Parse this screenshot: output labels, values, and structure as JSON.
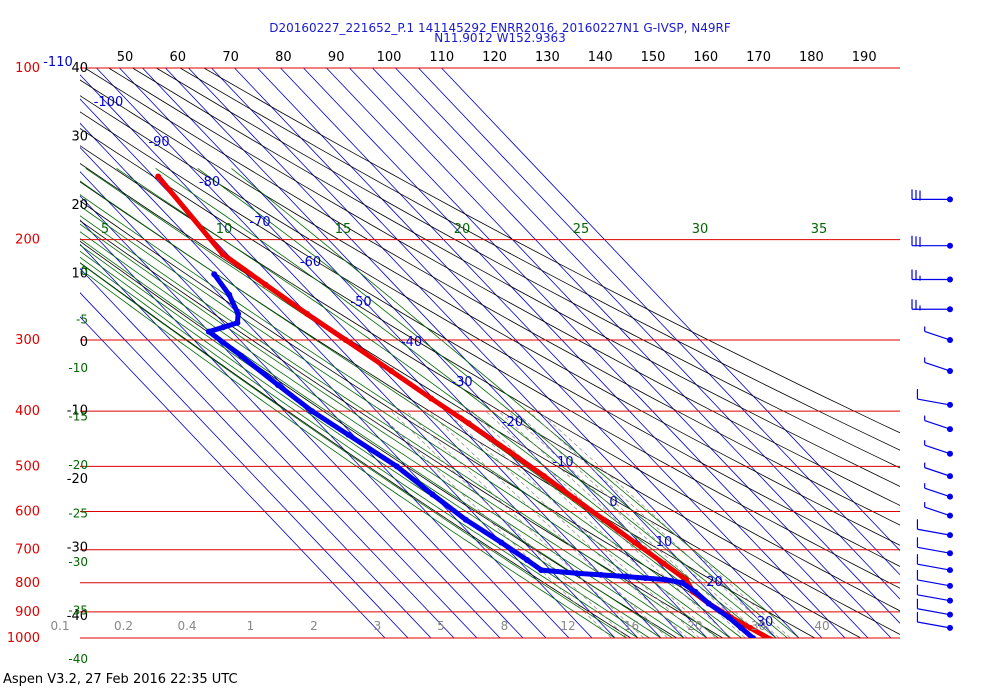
{
  "title_line1": "D20160227_221652_P.1 141145292 ENRR2016, 20160227N1 G-IVSP, N49RF",
  "title_line2": "N11.9012 W152.9363",
  "footer": "Aspen V3.2, 27 Feb 2016  22:35 UTC",
  "colors": {
    "isobar": "#dd0000",
    "isotherm": "#0000cc",
    "dry_adiabat": "#000000",
    "mixing_ratio": "#006600",
    "temperature": "#ee0000",
    "dewpoint": "#0000ee",
    "wind": "#0000ee"
  },
  "chart_data": {
    "type": "skew-t",
    "top_scale_labels": [
      "50",
      "60",
      "70",
      "80",
      "90",
      "100",
      "110",
      "120",
      "130",
      "140",
      "150",
      "160",
      "170",
      "180",
      "190"
    ],
    "pressure_labels": [
      {
        "p": 100,
        "label": "100"
      },
      {
        "p": 200,
        "label": "200"
      },
      {
        "p": 300,
        "label": "300"
      },
      {
        "p": 400,
        "label": "400"
      },
      {
        "p": 500,
        "label": "500"
      },
      {
        "p": 600,
        "label": "600"
      },
      {
        "p": 700,
        "label": "700"
      },
      {
        "p": 800,
        "label": "800"
      },
      {
        "p": 900,
        "label": "900"
      },
      {
        "p": 1000,
        "label": "1000"
      }
    ],
    "left_black_labels": [
      "40",
      "30",
      "20",
      "10",
      "0",
      "-10",
      "-20",
      "-30",
      "-40"
    ],
    "left_green_labels": [
      "0",
      "-5",
      "-10",
      "-15",
      "-20",
      "-25",
      "-30",
      "-35",
      "-40"
    ],
    "isotherm_labels": [
      "-110",
      "-100",
      "-90",
      "-80",
      "-70",
      "-60",
      "-50",
      "-40",
      "-30",
      "-20",
      "-10",
      "0",
      "10",
      "20",
      "30"
    ],
    "mixing_ratio_top_labels": [
      "5",
      "10",
      "15",
      "20",
      "25",
      "30",
      "35"
    ],
    "bottom_labels": [
      "0.1",
      "0.2",
      "0.4",
      "1",
      "2",
      "3",
      "5",
      "8",
      "12",
      "16",
      "20",
      "30",
      "40"
    ],
    "temperature_profile": [
      {
        "p": 155,
        "t": -48
      },
      {
        "p": 212,
        "t": -52
      },
      {
        "p": 240,
        "t": -46
      },
      {
        "p": 270,
        "t": -40
      },
      {
        "p": 300,
        "t": -34
      },
      {
        "p": 340,
        "t": -27
      },
      {
        "p": 380,
        "t": -21
      },
      {
        "p": 420,
        "t": -15
      },
      {
        "p": 470,
        "t": -9
      },
      {
        "p": 520,
        "t": -4
      },
      {
        "p": 570,
        "t": 0
      },
      {
        "p": 620,
        "t": 4
      },
      {
        "p": 680,
        "t": 8
      },
      {
        "p": 740,
        "t": 12
      },
      {
        "p": 790,
        "t": 15
      },
      {
        "p": 830,
        "t": 13
      },
      {
        "p": 870,
        "t": 15
      },
      {
        "p": 920,
        "t": 19
      },
      {
        "p": 960,
        "t": 23
      },
      {
        "p": 1005,
        "t": 27
      }
    ],
    "dewpoint_profile": [
      {
        "p": 230,
        "t": -64
      },
      {
        "p": 250,
        "t": -66
      },
      {
        "p": 270,
        "t": -70
      },
      {
        "p": 280,
        "t": -74
      },
      {
        "p": 285,
        "t": -82
      },
      {
        "p": 290,
        "t": -90
      },
      {
        "p": 320,
        "t": -86
      },
      {
        "p": 360,
        "t": -82
      },
      {
        "p": 400,
        "t": -78
      },
      {
        "p": 440,
        "t": -72
      },
      {
        "p": 500,
        "t": -64
      },
      {
        "p": 560,
        "t": -60
      },
      {
        "p": 620,
        "t": -56
      },
      {
        "p": 680,
        "t": -50
      },
      {
        "p": 730,
        "t": -46
      },
      {
        "p": 760,
        "t": -44
      },
      {
        "p": 770,
        "t": -30
      },
      {
        "p": 775,
        "t": -20
      },
      {
        "p": 780,
        "t": -10
      },
      {
        "p": 785,
        "t": -2
      },
      {
        "p": 790,
        "t": 6
      },
      {
        "p": 800,
        "t": 12
      },
      {
        "p": 830,
        "t": 14
      },
      {
        "p": 870,
        "t": 15
      },
      {
        "p": 920,
        "t": 18
      },
      {
        "p": 960,
        "t": 19
      },
      {
        "p": 1000,
        "t": 20
      }
    ],
    "wind_barbs": [
      {
        "p": 170,
        "speed": 30
      },
      {
        "p": 205,
        "speed": 30
      },
      {
        "p": 235,
        "speed": 25
      },
      {
        "p": 265,
        "speed": 25
      },
      {
        "p": 300,
        "speed": 5
      },
      {
        "p": 340,
        "speed": 5
      },
      {
        "p": 390,
        "speed": 10
      },
      {
        "p": 430,
        "speed": 5
      },
      {
        "p": 475,
        "speed": 5
      },
      {
        "p": 520,
        "speed": 5
      },
      {
        "p": 565,
        "speed": 5
      },
      {
        "p": 610,
        "speed": 5
      },
      {
        "p": 660,
        "speed": 10
      },
      {
        "p": 710,
        "speed": 10
      },
      {
        "p": 760,
        "speed": 10
      },
      {
        "p": 810,
        "speed": 10
      },
      {
        "p": 860,
        "speed": 10
      },
      {
        "p": 910,
        "speed": 10
      },
      {
        "p": 960,
        "speed": 10
      }
    ]
  }
}
